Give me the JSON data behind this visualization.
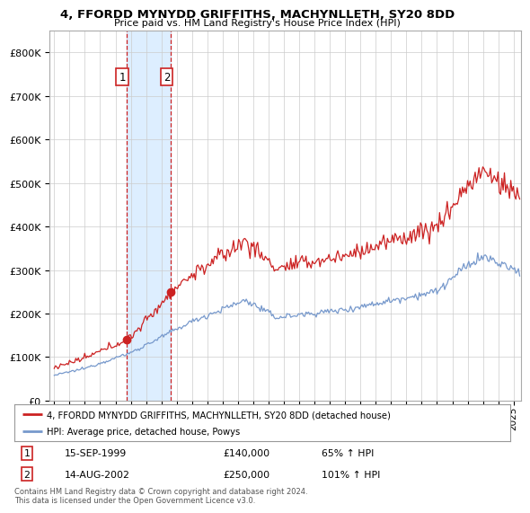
{
  "title": "4, FFORDD MYNYDD GRIFFITHS, MACHYNLLETH, SY20 8DD",
  "subtitle": "Price paid vs. HM Land Registry's House Price Index (HPI)",
  "legend_line1": "4, FFORDD MYNYDD GRIFFITHS, MACHYNLLETH, SY20 8DD (detached house)",
  "legend_line2": "HPI: Average price, detached house, Powys",
  "sale1_label": "1",
  "sale1_date": "15-SEP-1999",
  "sale1_price": "£140,000",
  "sale1_hpi": "65% ↑ HPI",
  "sale1_year": 1999.71,
  "sale1_value": 140000,
  "sale2_label": "2",
  "sale2_date": "14-AUG-2002",
  "sale2_price": "£250,000",
  "sale2_hpi": "101% ↑ HPI",
  "sale2_year": 2002.62,
  "sale2_value": 250000,
  "hpi_color": "#7799cc",
  "price_color": "#cc2222",
  "shaded_color": "#ddeeff",
  "ylim": [
    0,
    850000
  ],
  "yticks": [
    0,
    100000,
    200000,
    300000,
    400000,
    500000,
    600000,
    700000,
    800000
  ],
  "xlim_start": 1994.7,
  "xlim_end": 2025.5,
  "footer": "Contains HM Land Registry data © Crown copyright and database right 2024.\nThis data is licensed under the Open Government Licence v3.0.",
  "background_color": "#ffffff",
  "grid_color": "#cccccc"
}
